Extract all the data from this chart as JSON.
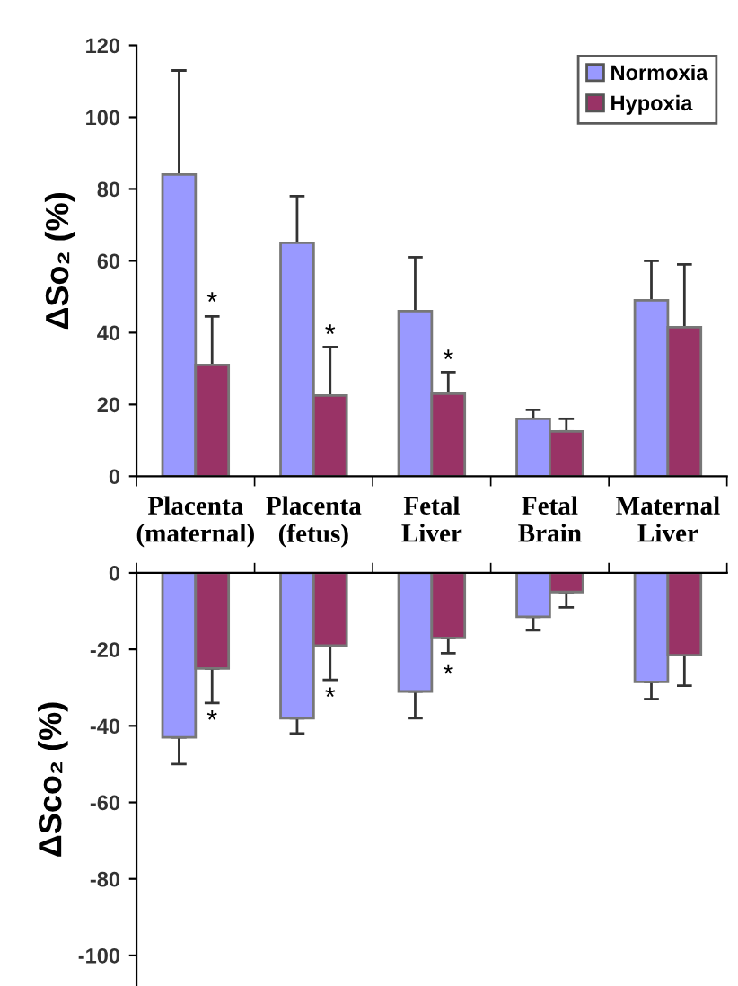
{
  "chart_data": [
    {
      "type": "bar",
      "ylabel": "ΔSo₂ (%)",
      "categories": [
        "Placenta\n(maternal)",
        "Placenta\n(fetus)",
        "Fetal\nLiver",
        "Fetal\nBrain",
        "Maternal\nLiver"
      ],
      "series": [
        {
          "name": "Normoxia",
          "color": "#9999ff",
          "values": [
            84,
            65,
            46,
            16,
            49
          ],
          "errors": [
            [
              84,
              113
            ],
            [
              65,
              78
            ],
            [
              46,
              61
            ],
            [
              16,
              18.5
            ],
            [
              49,
              60
            ]
          ]
        },
        {
          "name": "Hypoxia",
          "color": "#993366",
          "values": [
            31,
            22.5,
            23,
            12.5,
            41.5
          ],
          "errors": [
            [
              31,
              44.5
            ],
            [
              22.5,
              36
            ],
            [
              23,
              29
            ],
            [
              12.5,
              16
            ],
            [
              41.5,
              59
            ]
          ]
        }
      ],
      "ylim": [
        0,
        120
      ],
      "yticks": [
        0,
        20,
        40,
        60,
        80,
        100,
        120
      ],
      "legend": "top right",
      "grid": false,
      "annotations": [
        {
          "text": "*",
          "x": "Placenta\n(maternal)",
          "y": 48
        },
        {
          "text": "*",
          "x": "Placenta\n(fetus)",
          "y": 39
        },
        {
          "text": "*",
          "x": "Fetal\nLiver",
          "y": 32
        }
      ]
    },
    {
      "type": "bar",
      "ylabel": "ΔSco₂ (%)",
      "categories": [
        "Placenta\n(maternal)",
        "Placenta\n(fetus)",
        "Fetal\nLiver",
        "Fetal\nBrain",
        "Maternal\nLiver"
      ],
      "series": [
        {
          "color": "#9999ff",
          "values": [
            -43,
            -38,
            -31,
            -11.5,
            -28.5
          ],
          "errors": [
            [
              -50,
              -43
            ],
            [
              -42,
              -38
            ],
            [
              -38,
              -31
            ],
            [
              -15,
              -11.5
            ],
            [
              -33,
              -28.5
            ]
          ]
        },
        {
          "color": "#993366",
          "values": [
            -25,
            -19,
            -17,
            -5,
            -21.5
          ],
          "errors": [
            [
              -34,
              -25
            ],
            [
              -28,
              -19
            ],
            [
              -21,
              -17
            ],
            [
              -9,
              -5
            ],
            [
              -29.5,
              -21.5
            ]
          ]
        }
      ],
      "ylim": [
        -108,
        0
      ],
      "yticks": [
        0,
        -20,
        -40,
        -60,
        -80,
        -100
      ],
      "tick_labels": "y",
      "legend": false,
      "grid": false,
      "annotations": [
        {
          "text": "*",
          "x": "Placenta\n(maternal)",
          "y": -39
        },
        {
          "text": "*",
          "x": "Placenta\n(fetus)",
          "y": -33
        },
        {
          "text": "*",
          "x": "Fetal\nLiver",
          "y": -27
        }
      ]
    }
  ]
}
